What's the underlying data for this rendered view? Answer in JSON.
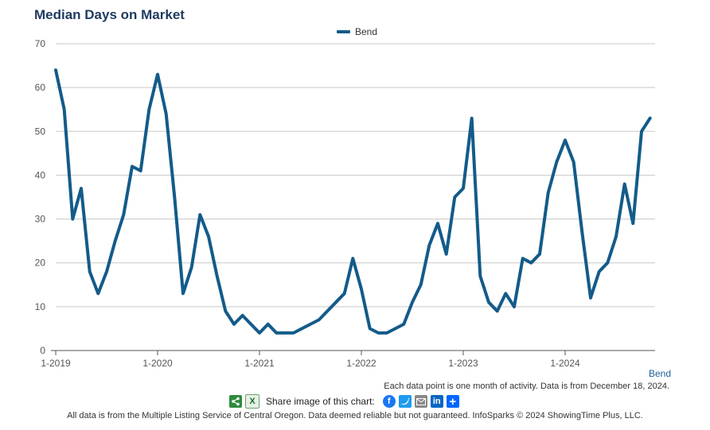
{
  "title": "Median Days on Market",
  "series_link": "Bend",
  "note": "Each data point is one month of activity. Data is from December 18, 2024.",
  "share_label": "Share image of this chart:",
  "footer": "All data is from the Multiple Listing Service of Central Oregon. Data deemed reliable but not guaranteed. InfoSparks © 2024 ShowingTime Plus, LLC.",
  "icons": [
    "share-icon",
    "excel-icon",
    "facebook-icon",
    "twitter-icon",
    "email-icon",
    "linkedin-icon",
    "plus-icon"
  ],
  "colors": {
    "series": "#135b8a",
    "grid": "#c8c8c8",
    "title": "#1f3a5f"
  },
  "chart_data": {
    "type": "line",
    "title": "Median Days on Market",
    "legend": "top-center",
    "grid": true,
    "ylim": [
      0,
      70
    ],
    "yticks": [
      0,
      10,
      20,
      30,
      40,
      50,
      60,
      70
    ],
    "xticks": [
      "1-2019",
      "1-2020",
      "1-2021",
      "1-2022",
      "1-2023",
      "1-2024"
    ],
    "x": [
      "1-2019",
      "2-2019",
      "3-2019",
      "4-2019",
      "5-2019",
      "6-2019",
      "7-2019",
      "8-2019",
      "9-2019",
      "10-2019",
      "11-2019",
      "12-2019",
      "1-2020",
      "2-2020",
      "3-2020",
      "4-2020",
      "5-2020",
      "6-2020",
      "7-2020",
      "8-2020",
      "9-2020",
      "10-2020",
      "11-2020",
      "12-2020",
      "1-2021",
      "2-2021",
      "3-2021",
      "4-2021",
      "5-2021",
      "6-2021",
      "7-2021",
      "8-2021",
      "9-2021",
      "10-2021",
      "11-2021",
      "12-2021",
      "1-2022",
      "2-2022",
      "3-2022",
      "4-2022",
      "5-2022",
      "6-2022",
      "7-2022",
      "8-2022",
      "9-2022",
      "10-2022",
      "11-2022",
      "12-2022",
      "1-2023",
      "2-2023",
      "3-2023",
      "4-2023",
      "5-2023",
      "6-2023",
      "7-2023",
      "8-2023",
      "9-2023",
      "10-2023",
      "11-2023",
      "12-2023",
      "1-2024",
      "2-2024",
      "3-2024",
      "4-2024",
      "5-2024",
      "6-2024",
      "7-2024",
      "8-2024",
      "9-2024",
      "10-2024",
      "11-2024"
    ],
    "series": [
      {
        "name": "Bend",
        "values": [
          64,
          55,
          30,
          37,
          18,
          13,
          18,
          25,
          31,
          42,
          41,
          55,
          63,
          54,
          35,
          13,
          19,
          31,
          26,
          17,
          9,
          6,
          8,
          6,
          4,
          6,
          4,
          4,
          4,
          5,
          6,
          7,
          9,
          11,
          13,
          21,
          14,
          5,
          4,
          4,
          5,
          6,
          11,
          15,
          24,
          29,
          22,
          35,
          37,
          53,
          17,
          11,
          9,
          13,
          10,
          21,
          20,
          22,
          36,
          43,
          48,
          43,
          27,
          12,
          18,
          20,
          26,
          38,
          29,
          50,
          53
        ]
      }
    ]
  }
}
